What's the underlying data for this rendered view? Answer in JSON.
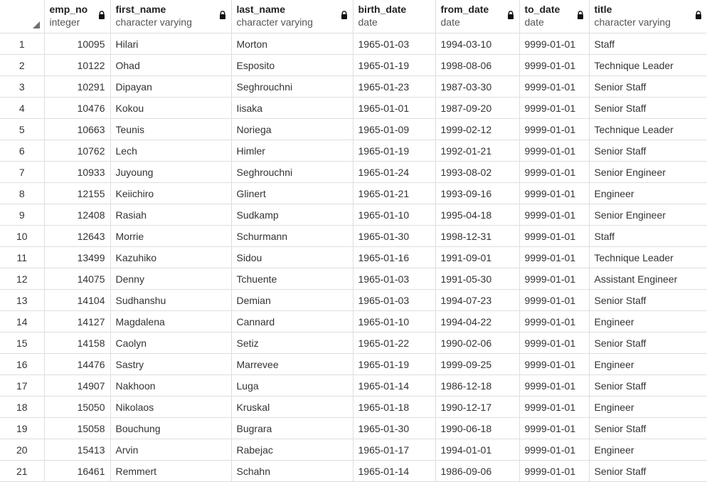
{
  "columns": [
    {
      "name": "emp_no",
      "type": "integer"
    },
    {
      "name": "first_name",
      "type": "character varying"
    },
    {
      "name": "last_name",
      "type": "character varying"
    },
    {
      "name": "birth_date",
      "type": "date"
    },
    {
      "name": "from_date",
      "type": "date"
    },
    {
      "name": "to_date",
      "type": "date"
    },
    {
      "name": "title",
      "type": "character varying"
    }
  ],
  "rows": [
    {
      "n": "1",
      "cells": [
        "10095",
        "Hilari",
        "Morton",
        "1965-01-03",
        "1994-03-10",
        "9999-01-01",
        "Staff"
      ]
    },
    {
      "n": "2",
      "cells": [
        "10122",
        "Ohad",
        "Esposito",
        "1965-01-19",
        "1998-08-06",
        "9999-01-01",
        "Technique Leader"
      ]
    },
    {
      "n": "3",
      "cells": [
        "10291",
        "Dipayan",
        "Seghrouchni",
        "1965-01-23",
        "1987-03-30",
        "9999-01-01",
        "Senior Staff"
      ]
    },
    {
      "n": "4",
      "cells": [
        "10476",
        "Kokou",
        "Iisaka",
        "1965-01-01",
        "1987-09-20",
        "9999-01-01",
        "Senior Staff"
      ]
    },
    {
      "n": "5",
      "cells": [
        "10663",
        "Teunis",
        "Noriega",
        "1965-01-09",
        "1999-02-12",
        "9999-01-01",
        "Technique Leader"
      ]
    },
    {
      "n": "6",
      "cells": [
        "10762",
        "Lech",
        "Himler",
        "1965-01-19",
        "1992-01-21",
        "9999-01-01",
        "Senior Staff"
      ]
    },
    {
      "n": "7",
      "cells": [
        "10933",
        "Juyoung",
        "Seghrouchni",
        "1965-01-24",
        "1993-08-02",
        "9999-01-01",
        "Senior Engineer"
      ]
    },
    {
      "n": "8",
      "cells": [
        "12155",
        "Keiichiro",
        "Glinert",
        "1965-01-21",
        "1993-09-16",
        "9999-01-01",
        "Engineer"
      ]
    },
    {
      "n": "9",
      "cells": [
        "12408",
        "Rasiah",
        "Sudkamp",
        "1965-01-10",
        "1995-04-18",
        "9999-01-01",
        "Senior Engineer"
      ]
    },
    {
      "n": "10",
      "cells": [
        "12643",
        "Morrie",
        "Schurmann",
        "1965-01-30",
        "1998-12-31",
        "9999-01-01",
        "Staff"
      ]
    },
    {
      "n": "11",
      "cells": [
        "13499",
        "Kazuhiko",
        "Sidou",
        "1965-01-16",
        "1991-09-01",
        "9999-01-01",
        "Technique Leader"
      ]
    },
    {
      "n": "12",
      "cells": [
        "14075",
        "Denny",
        "Tchuente",
        "1965-01-03",
        "1991-05-30",
        "9999-01-01",
        "Assistant Engineer"
      ]
    },
    {
      "n": "13",
      "cells": [
        "14104",
        "Sudhanshu",
        "Demian",
        "1965-01-03",
        "1994-07-23",
        "9999-01-01",
        "Senior Staff"
      ]
    },
    {
      "n": "14",
      "cells": [
        "14127",
        "Magdalena",
        "Cannard",
        "1965-01-10",
        "1994-04-22",
        "9999-01-01",
        "Engineer"
      ]
    },
    {
      "n": "15",
      "cells": [
        "14158",
        "Caolyn",
        "Setiz",
        "1965-01-22",
        "1990-02-06",
        "9999-01-01",
        "Senior Staff"
      ]
    },
    {
      "n": "16",
      "cells": [
        "14476",
        "Sastry",
        "Marrevee",
        "1965-01-19",
        "1999-09-25",
        "9999-01-01",
        "Engineer"
      ]
    },
    {
      "n": "17",
      "cells": [
        "14907",
        "Nakhoon",
        "Luga",
        "1965-01-14",
        "1986-12-18",
        "9999-01-01",
        "Senior Staff"
      ]
    },
    {
      "n": "18",
      "cells": [
        "15050",
        "Nikolaos",
        "Kruskal",
        "1965-01-18",
        "1990-12-17",
        "9999-01-01",
        "Engineer"
      ]
    },
    {
      "n": "19",
      "cells": [
        "15058",
        "Bouchung",
        "Bugrara",
        "1965-01-30",
        "1990-06-18",
        "9999-01-01",
        "Senior Staff"
      ]
    },
    {
      "n": "20",
      "cells": [
        "15413",
        "Arvin",
        "Rabejac",
        "1965-01-17",
        "1994-01-01",
        "9999-01-01",
        "Engineer"
      ]
    },
    {
      "n": "21",
      "cells": [
        "16461",
        "Remmert",
        "Schahn",
        "1965-01-14",
        "1986-09-06",
        "9999-01-01",
        "Senior Staff"
      ]
    }
  ]
}
